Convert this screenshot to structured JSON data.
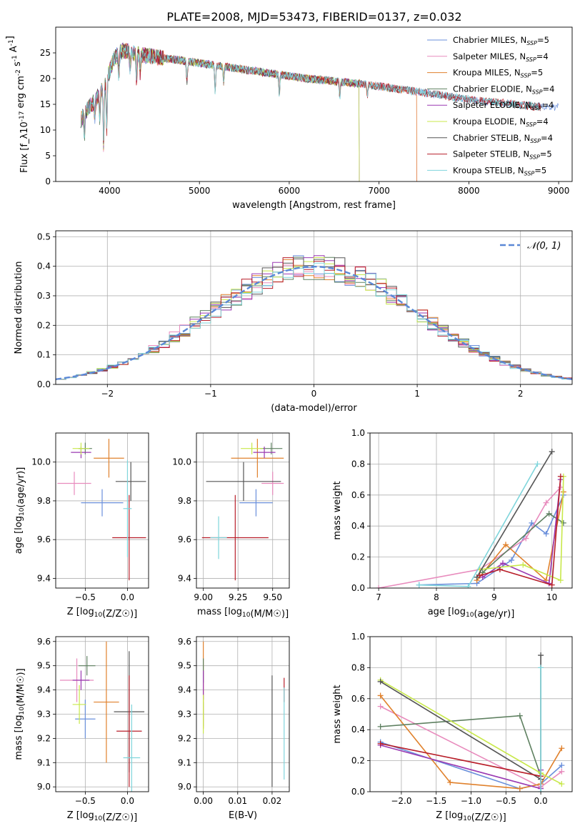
{
  "figure_title": "PLATE=2008, MJD=53473, FIBERID=0137, z=0.032",
  "colors": {
    "chabrier_miles": "#6a8fdb",
    "salpeter_miles": "#e88bbd",
    "kroupa_miles": "#e0812c",
    "chabrier_elodie": "#5e8060",
    "salpeter_elodie": "#9a39b2",
    "kroupa_elodie": "#c8e84a",
    "chabrier_stelib": "#555555",
    "salpeter_stelib": "#b81f2a",
    "kroupa_stelib": "#7fd5db",
    "normal": "#5b88d6"
  },
  "chart_data": [
    {
      "id": "spectrum",
      "type": "line",
      "xlabel": "wavelength [Angstrom, rest frame]",
      "ylabel": "Flux [f_λ10^-17 erg cm^-2 s^-1 A^-1]",
      "xlim": [
        3400,
        9150
      ],
      "ylim": [
        0,
        30
      ],
      "xticks": [
        4000,
        5000,
        6000,
        7000,
        8000,
        9000
      ],
      "yticks": [
        0,
        5,
        10,
        15,
        20,
        25
      ],
      "grid": false,
      "legend_position": "top-right",
      "continuum": {
        "x": [
          3680,
          3750,
          3850,
          3950,
          4050,
          4150,
          4250,
          4400,
          4600,
          4800,
          5000,
          5200,
          5400,
          5600,
          5800,
          6000,
          6200,
          6400,
          6600,
          6800,
          7000,
          7200,
          7400,
          7600,
          7800,
          8000,
          8200,
          8400,
          8600,
          8800
        ],
        "y": [
          12,
          14,
          16,
          19,
          24,
          25.5,
          25,
          24.5,
          24,
          23.5,
          23,
          22.5,
          22,
          21.5,
          21,
          20.5,
          20,
          19.7,
          19.3,
          19,
          18.5,
          18,
          17.5,
          17,
          16.5,
          16,
          15.5,
          15.2,
          14.8,
          14.5
        ]
      },
      "series": [
        {
          "name": "Chabrier MILES, N_SSP=5",
          "color_key": "chabrier_miles",
          "end": 9000
        },
        {
          "name": "Salpeter MILES, N_SSP=4",
          "color_key": "salpeter_miles",
          "end": 7420
        },
        {
          "name": "Kroupa MILES, N_SSP=5",
          "color_key": "kroupa_miles",
          "end": 7420
        },
        {
          "name": "Chabrier ELODIE, N_SSP=4",
          "color_key": "chabrier_elodie",
          "end": 6780
        },
        {
          "name": "Salpeter ELODIE, N_SSP=4",
          "color_key": "salpeter_elodie",
          "end": 6780
        },
        {
          "name": "Kroupa ELODIE, N_SSP=4",
          "color_key": "kroupa_elodie",
          "end": 6780
        },
        {
          "name": "Chabrier STELIB, N_SSP=4",
          "color_key": "chabrier_stelib",
          "end": 8800
        },
        {
          "name": "Salpeter STELIB, N_SSP=5",
          "color_key": "salpeter_stelib",
          "end": 8800
        },
        {
          "name": "Kroupa STELIB, N_SSP=5",
          "color_key": "kroupa_stelib",
          "end": 8800
        }
      ]
    },
    {
      "id": "residuals",
      "type": "line",
      "xlabel": "(data-model)/error",
      "ylabel": "Normed distribution",
      "xlim": [
        -2.5,
        2.5
      ],
      "ylim": [
        0,
        0.52
      ],
      "xticks": [
        -2,
        -1,
        0,
        1,
        2
      ],
      "xtick_labels": [
        "−2",
        "−1",
        "0",
        "1",
        "2"
      ],
      "yticks": [
        0.0,
        0.1,
        0.2,
        0.3,
        0.4,
        0.5
      ],
      "ytick_labels": [
        "0.0",
        "0.1",
        "0.2",
        "0.3",
        "0.4",
        "0.5"
      ],
      "grid": true,
      "bin_width": 0.1,
      "reference": {
        "name": "𝒩(0, 1)",
        "color_key": "normal",
        "style": "dashed"
      },
      "legend_position": "top-right"
    },
    {
      "id": "age_vs_Z",
      "type": "scatter",
      "xlabel": "Z [log10(Z/Z☉)]",
      "ylabel": "age [log10(age/yr)]",
      "xlim": [
        -0.85,
        0.25
      ],
      "ylim": [
        9.35,
        10.15
      ],
      "xticks": [
        -0.5,
        0.0
      ],
      "xtick_labels": [
        "−0.5",
        "0.0"
      ],
      "yticks": [
        9.4,
        9.6,
        9.8,
        10.0
      ],
      "ytick_labels": [
        "9.4",
        "9.6",
        "9.8",
        "10.0"
      ],
      "grid": true,
      "points": [
        {
          "color_key": "chabrier_miles",
          "x": -0.3,
          "xerr": 0.25,
          "y": 9.79,
          "yerr": 0.07
        },
        {
          "color_key": "salpeter_miles",
          "x": -0.63,
          "xerr": 0.2,
          "y": 9.89,
          "yerr": 0.06
        },
        {
          "color_key": "kroupa_miles",
          "x": -0.22,
          "xerr": 0.18,
          "y": 10.02,
          "yerr": 0.1
        },
        {
          "color_key": "chabrier_elodie",
          "x": -0.5,
          "xerr": 0.08,
          "y": 10.07,
          "yerr": 0.03
        },
        {
          "color_key": "salpeter_elodie",
          "x": -0.55,
          "xerr": 0.12,
          "y": 10.05,
          "yerr": 0.03
        },
        {
          "color_key": "kroupa_elodie",
          "x": -0.55,
          "xerr": 0.1,
          "y": 10.07,
          "yerr": 0.03
        },
        {
          "color_key": "chabrier_stelib",
          "x": 0.04,
          "xerr": 0.18,
          "y": 9.9,
          "yerr": 0.1
        },
        {
          "color_key": "salpeter_stelib",
          "x": 0.02,
          "xerr": 0.2,
          "y": 9.61,
          "yerr": 0.22
        },
        {
          "color_key": "kroupa_stelib",
          "x": 0.0,
          "xerr": 0.05,
          "y": 9.76,
          "yerr": 0.25
        }
      ]
    },
    {
      "id": "age_vs_mass",
      "type": "scatter",
      "xlabel": "mass [log10(M/M☉)]",
      "ylabel": "",
      "xlim": [
        8.95,
        9.62
      ],
      "ylim": [
        9.35,
        10.15
      ],
      "xticks": [
        9.0,
        9.25,
        9.5
      ],
      "xtick_labels": [
        "9.00",
        "9.25",
        "9.50"
      ],
      "yticks": [
        9.4,
        9.6,
        9.8,
        10.0
      ],
      "ytick_labels": [
        "9.4",
        "9.6",
        "9.8",
        "10.0"
      ],
      "grid": true,
      "points": [
        {
          "color_key": "chabrier_miles",
          "x": 9.38,
          "xerr": 0.12,
          "y": 9.79,
          "yerr": 0.07
        },
        {
          "color_key": "salpeter_miles",
          "x": 9.5,
          "xerr": 0.08,
          "y": 9.89,
          "yerr": 0.06
        },
        {
          "color_key": "kroupa_miles",
          "x": 9.39,
          "xerr": 0.19,
          "y": 10.02,
          "yerr": 0.1
        },
        {
          "color_key": "chabrier_elodie",
          "x": 9.49,
          "xerr": 0.08,
          "y": 10.07,
          "yerr": 0.03
        },
        {
          "color_key": "salpeter_elodie",
          "x": 9.44,
          "xerr": 0.08,
          "y": 10.05,
          "yerr": 0.03
        },
        {
          "color_key": "kroupa_elodie",
          "x": 9.35,
          "xerr": 0.08,
          "y": 10.07,
          "yerr": 0.03
        },
        {
          "color_key": "chabrier_stelib",
          "x": 9.29,
          "xerr": 0.27,
          "y": 9.9,
          "yerr": 0.1
        },
        {
          "color_key": "salpeter_stelib",
          "x": 9.23,
          "xerr": 0.24,
          "y": 9.61,
          "yerr": 0.22
        },
        {
          "color_key": "kroupa_stelib",
          "x": 9.11,
          "xerr": 0.06,
          "y": 9.61,
          "yerr": 0.11
        }
      ]
    },
    {
      "id": "mass_weight_vs_age",
      "type": "line",
      "xlabel": "age [log10(age/yr)]",
      "ylabel": "mass weight",
      "xlim": [
        6.85,
        10.35
      ],
      "ylim": [
        0,
        1.0
      ],
      "xticks": [
        7,
        8,
        9,
        10
      ],
      "yticks": [
        0,
        0.2,
        0.4,
        0.6,
        0.8,
        1.0
      ],
      "ytick_labels": [
        "0.0",
        "0.2",
        "0.4",
        "0.6",
        "0.8",
        "1.0"
      ],
      "grid": true,
      "series": [
        {
          "color_key": "chabrier_miles",
          "x": [
            7.7,
            8.7,
            9.3,
            9.65,
            9.9,
            10.2
          ],
          "y": [
            0.02,
            0.03,
            0.18,
            0.42,
            0.35,
            0.6
          ]
        },
        {
          "color_key": "salpeter_miles",
          "x": [
            7.0,
            8.75,
            9.55,
            9.9,
            10.15
          ],
          "y": [
            0.0,
            0.12,
            0.32,
            0.55,
            0.65
          ]
        },
        {
          "color_key": "kroupa_miles",
          "x": [
            8.7,
            9.2,
            9.9,
            10.2
          ],
          "y": [
            0.05,
            0.28,
            0.05,
            0.62
          ]
        },
        {
          "color_key": "chabrier_elodie",
          "x": [
            8.8,
            9.95,
            10.2
          ],
          "y": [
            0.1,
            0.48,
            0.42
          ]
        },
        {
          "color_key": "salpeter_elodie",
          "x": [
            8.8,
            9.15,
            9.95,
            10.15
          ],
          "y": [
            0.07,
            0.16,
            0.03,
            0.7
          ]
        },
        {
          "color_key": "kroupa_elodie",
          "x": [
            8.75,
            9.5,
            10.15,
            10.2
          ],
          "y": [
            0.12,
            0.15,
            0.05,
            0.72
          ]
        },
        {
          "color_key": "chabrier_stelib",
          "x": [
            8.7,
            10.0
          ],
          "y": [
            0.07,
            0.88
          ]
        },
        {
          "color_key": "salpeter_stelib",
          "x": [
            8.75,
            9.1,
            10.0,
            10.15
          ],
          "y": [
            0.08,
            0.12,
            0.02,
            0.72
          ]
        },
        {
          "color_key": "kroupa_stelib",
          "x": [
            7.7,
            8.55,
            9.75
          ],
          "y": [
            0.02,
            0.01,
            0.8
          ]
        }
      ]
    },
    {
      "id": "mass_vs_Z",
      "type": "scatter",
      "xlabel": "Z [log10(Z/Z☉)]",
      "ylabel": "mass [log10(M/M☉)]",
      "xlim": [
        -0.85,
        0.25
      ],
      "ylim": [
        8.98,
        9.62
      ],
      "xticks": [
        -0.5,
        0.0
      ],
      "xtick_labels": [
        "−0.5",
        "0.0"
      ],
      "yticks": [
        9.0,
        9.1,
        9.2,
        9.3,
        9.4,
        9.5,
        9.6
      ],
      "ytick_labels": [
        "9.0",
        "9.1",
        "9.2",
        "9.3",
        "9.4",
        "9.5",
        "9.6"
      ],
      "grid": true,
      "points": [
        {
          "color_key": "chabrier_miles",
          "x": -0.5,
          "xerr": 0.12,
          "y": 9.28,
          "yerr": 0.08
        },
        {
          "color_key": "salpeter_miles",
          "x": -0.6,
          "xerr": 0.2,
          "y": 9.44,
          "yerr": 0.09
        },
        {
          "color_key": "kroupa_miles",
          "x": -0.25,
          "xerr": 0.15,
          "y": 9.35,
          "yerr": 0.25
        },
        {
          "color_key": "chabrier_elodie",
          "x": -0.48,
          "xerr": 0.1,
          "y": 9.5,
          "yerr": 0.04
        },
        {
          "color_key": "salpeter_elodie",
          "x": -0.55,
          "xerr": 0.1,
          "y": 9.44,
          "yerr": 0.04
        },
        {
          "color_key": "kroupa_elodie",
          "x": -0.57,
          "xerr": 0.08,
          "y": 9.34,
          "yerr": 0.08
        },
        {
          "color_key": "chabrier_stelib",
          "x": 0.02,
          "xerr": 0.18,
          "y": 9.31,
          "yerr": 0.25
        },
        {
          "color_key": "salpeter_stelib",
          "x": 0.02,
          "xerr": 0.15,
          "y": 9.23,
          "yerr": 0.23
        },
        {
          "color_key": "kroupa_stelib",
          "x": 0.05,
          "xerr": 0.1,
          "y": 9.12,
          "yerr": 0.22
        }
      ]
    },
    {
      "id": "mass_vs_ebv",
      "type": "scatter",
      "xlabel": "E(B-V)",
      "ylabel": "",
      "xlim": [
        -0.002,
        0.025
      ],
      "ylim": [
        8.98,
        9.62
      ],
      "xticks": [
        0.0,
        0.01,
        0.02
      ],
      "xtick_labels": [
        "0.00",
        "0.01",
        "0.02"
      ],
      "yticks": [
        9.0,
        9.1,
        9.2,
        9.3,
        9.4,
        9.5,
        9.6
      ],
      "ytick_labels": [
        "9.0",
        "9.1",
        "9.2",
        "9.3",
        "9.4",
        "9.5",
        "9.6"
      ],
      "grid": true,
      "points": [
        {
          "color_key": "chabrier_miles",
          "x": 0.0,
          "xerr": 0.0,
          "y": 9.3,
          "yerr": 0.05
        },
        {
          "color_key": "salpeter_miles",
          "x": 0.0,
          "xerr": 0.0,
          "y": 9.42,
          "yerr": 0.06
        },
        {
          "color_key": "kroupa_miles",
          "x": 0.0,
          "xerr": 0.0,
          "y": 9.42,
          "yerr": 0.18
        },
        {
          "color_key": "chabrier_elodie",
          "x": 0.0,
          "xerr": 0.0,
          "y": 9.48,
          "yerr": 0.05
        },
        {
          "color_key": "salpeter_elodie",
          "x": 0.0,
          "xerr": 0.0,
          "y": 9.42,
          "yerr": 0.06
        },
        {
          "color_key": "kroupa_elodie",
          "x": 0.0,
          "xerr": 0.0,
          "y": 9.3,
          "yerr": 0.08
        },
        {
          "color_key": "chabrier_stelib",
          "x": 0.02,
          "xerr": 0.0,
          "y": 9.23,
          "yerr": 0.23
        },
        {
          "color_key": "salpeter_stelib",
          "x": 0.0235,
          "xerr": 0.0,
          "y": 9.4,
          "yerr": 0.05
        },
        {
          "color_key": "kroupa_stelib",
          "x": 0.0235,
          "xerr": 0.0,
          "y": 9.22,
          "yerr": 0.19
        }
      ]
    },
    {
      "id": "mass_weight_vs_Z",
      "type": "line",
      "xlabel": "Z [log10(Z/Z☉)]",
      "ylabel": "mass weight",
      "xlim": [
        -2.45,
        0.45
      ],
      "ylim": [
        0,
        1.0
      ],
      "xticks": [
        -2.0,
        -1.5,
        -1.0,
        -0.5,
        0.0
      ],
      "xtick_labels": [
        "−2.0",
        "−1.5",
        "−1.0",
        "−0.5",
        "0.0"
      ],
      "yticks": [
        0,
        0.2,
        0.4,
        0.6,
        0.8,
        1.0
      ],
      "ytick_labels": [
        "0.0",
        "0.2",
        "0.4",
        "0.6",
        "0.8",
        "1.0"
      ],
      "grid": true,
      "series": [
        {
          "color_key": "chabrier_miles",
          "x": [
            -2.3,
            -0.3,
            0.0,
            0.3
          ],
          "y": [
            0.32,
            0.02,
            0.05,
            0.17
          ]
        },
        {
          "color_key": "salpeter_miles",
          "x": [
            -2.3,
            0.0,
            0.3
          ],
          "y": [
            0.55,
            0.03,
            0.13
          ]
        },
        {
          "color_key": "kroupa_miles",
          "x": [
            -2.3,
            -1.3,
            -0.3,
            0.0,
            0.3
          ],
          "y": [
            0.62,
            0.06,
            0.02,
            0.05,
            0.28
          ]
        },
        {
          "color_key": "chabrier_elodie",
          "x": [
            -2.3,
            -0.3,
            0.0
          ],
          "y": [
            0.42,
            0.49,
            0.1
          ]
        },
        {
          "color_key": "salpeter_elodie",
          "x": [
            -2.3,
            0.0,
            0.0
          ],
          "y": [
            0.3,
            0.02,
            0.14
          ]
        },
        {
          "color_key": "kroupa_elodie",
          "x": [
            -2.3,
            0.0,
            0.3
          ],
          "y": [
            0.72,
            0.12,
            0.05
          ]
        },
        {
          "color_key": "chabrier_stelib",
          "x": [
            -2.3,
            0.0,
            0.0
          ],
          "y": [
            0.71,
            0.08,
            0.88
          ]
        },
        {
          "color_key": "salpeter_stelib",
          "x": [
            -2.3,
            0.0
          ],
          "y": [
            0.31,
            0.1
          ]
        },
        {
          "color_key": "kroupa_stelib",
          "x": [
            0.0,
            0.0
          ],
          "y": [
            0.0,
            0.8
          ]
        }
      ]
    }
  ]
}
